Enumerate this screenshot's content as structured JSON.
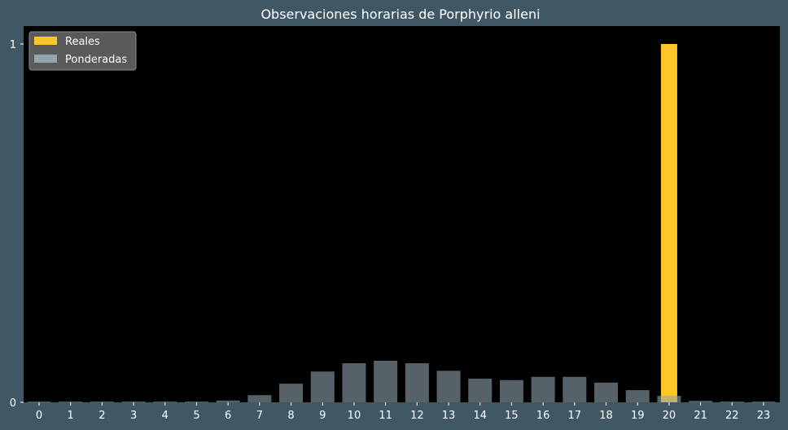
{
  "chart_data": {
    "type": "bar",
    "title": "Observaciones horarias de Porphyrio alleni",
    "xlabel": "",
    "ylabel": "",
    "categories": [
      "0",
      "1",
      "2",
      "3",
      "4",
      "5",
      "6",
      "7",
      "8",
      "9",
      "10",
      "11",
      "12",
      "13",
      "14",
      "15",
      "16",
      "17",
      "18",
      "19",
      "20",
      "21",
      "22",
      "23"
    ],
    "ylim": [
      0,
      1.05
    ],
    "yticks": [
      0,
      1
    ],
    "ytick_labels": [
      "0",
      "1"
    ],
    "legend_position": "top-left",
    "grid": false,
    "series": [
      {
        "name": "Reales",
        "color": "#ffc629",
        "values": [
          0,
          0,
          0,
          0,
          0,
          0,
          0,
          0,
          0,
          0,
          0,
          0,
          0,
          0,
          0,
          0,
          0,
          0,
          0,
          0,
          1,
          0,
          0,
          0
        ]
      },
      {
        "name": "Ponderadas",
        "color": "#8fa4ab",
        "opacity": 0.6,
        "values": [
          0.002,
          0.002,
          0.002,
          0.002,
          0.002,
          0.002,
          0.005,
          0.02,
          0.052,
          0.086,
          0.109,
          0.116,
          0.109,
          0.088,
          0.066,
          0.062,
          0.071,
          0.071,
          0.055,
          0.034,
          0.018,
          0.004,
          0.002,
          0.002
        ]
      }
    ]
  }
}
